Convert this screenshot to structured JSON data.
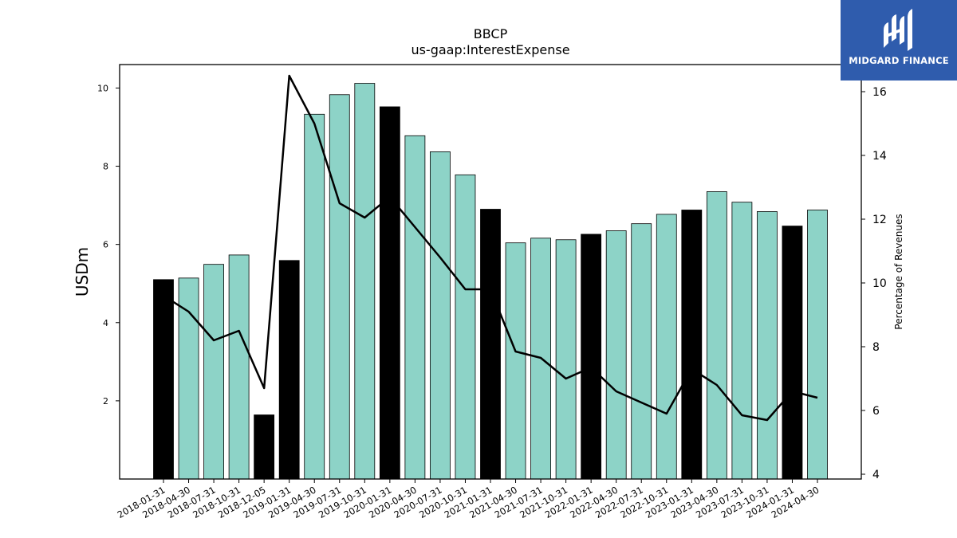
{
  "chart_data": {
    "type": "bar",
    "title": "BBCP",
    "subtitle": "us-gaap:InterestExpense",
    "ylabel": "USDm",
    "y2label": "Percentage of Revenues",
    "ylim": [
      0,
      10.6
    ],
    "y2lim": [
      3.85,
      16.85
    ],
    "yticks": [
      2,
      4,
      6,
      8,
      10
    ],
    "y2ticks": [
      4,
      6,
      8,
      10,
      12,
      14,
      16
    ],
    "categories": [
      "2018-01-31",
      "2018-04-30",
      "2018-07-31",
      "2018-10-31",
      "2018-12-05",
      "2019-01-31",
      "2019-04-30",
      "2019-07-31",
      "2019-10-31",
      "2020-01-31",
      "2020-04-30",
      "2020-07-31",
      "2020-10-31",
      "2021-01-31",
      "2021-04-30",
      "2021-07-31",
      "2021-10-31",
      "2022-01-31",
      "2022-04-30",
      "2022-07-31",
      "2022-10-31",
      "2023-01-31",
      "2023-04-30",
      "2023-07-31",
      "2023-10-31",
      "2024-01-31",
      "2024-04-30"
    ],
    "series": [
      {
        "type": "bar",
        "values": [
          5.1,
          5.14,
          5.49,
          5.73,
          1.64,
          5.59,
          9.33,
          9.83,
          10.12,
          9.52,
          8.78,
          8.37,
          7.78,
          6.9,
          6.04,
          6.16,
          6.12,
          6.26,
          6.35,
          6.53,
          6.77,
          6.88,
          7.35,
          7.08,
          6.84,
          6.47,
          6.88
        ],
        "highlight": [
          true,
          false,
          false,
          false,
          true,
          true,
          false,
          false,
          false,
          true,
          false,
          false,
          false,
          true,
          false,
          false,
          false,
          true,
          false,
          false,
          false,
          true,
          false,
          false,
          false,
          true,
          false
        ],
        "color": "#8dd3c7",
        "highlight_color": "#000000"
      },
      {
        "type": "line",
        "axis": "right",
        "values": [
          9.6,
          9.1,
          8.2,
          8.5,
          6.7,
          16.5,
          15.0,
          12.5,
          12.05,
          12.7,
          11.75,
          10.8,
          9.8,
          9.8,
          7.85,
          7.65,
          7.0,
          7.35,
          6.6,
          6.25,
          5.9,
          7.3,
          6.8,
          5.85,
          5.7,
          6.6,
          6.4
        ],
        "color": "#000000"
      }
    ]
  },
  "logo": {
    "text": "MIDGARD FINANCE",
    "bg": "#2f5cad"
  }
}
